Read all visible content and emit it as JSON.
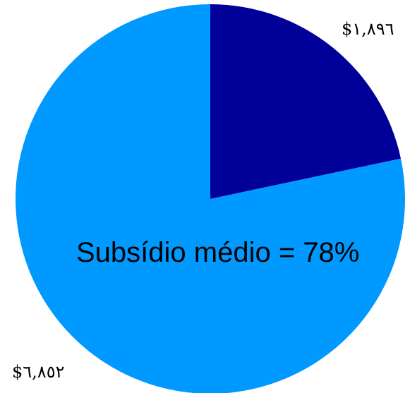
{
  "chart_data": {
    "type": "pie",
    "slices": [
      {
        "label": "$١,٨٩٦",
        "value": 1896,
        "color": "#000099"
      },
      {
        "label": "$٦,٨٥٢",
        "value": 6852,
        "color": "#0099ff"
      }
    ],
    "start_angle_deg": 0,
    "direction": "clockwise",
    "annotation": "Subsídio médio = 78%",
    "legend": "none"
  }
}
